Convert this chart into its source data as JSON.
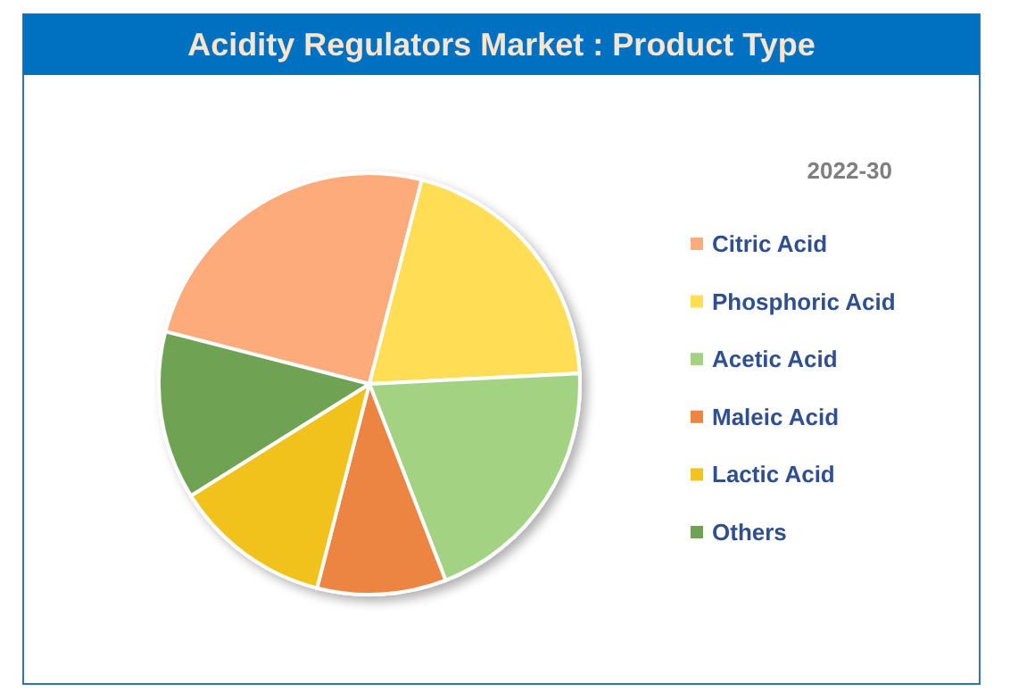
{
  "chart_data": {
    "type": "pie",
    "title": "Acidity Regulators Market : Product Type",
    "subtitle": "2022-30",
    "categories": [
      "Citric Acid",
      "Phosphoric Acid",
      "Acetic Acid",
      "Maleic Acid",
      "Lactic Acid",
      "Others"
    ],
    "values": [
      25.0,
      20.2,
      19.9,
      9.9,
      12.1,
      12.9
    ],
    "colors": [
      "#fdab7a",
      "#ffdd55",
      "#a3d282",
      "#ec8442",
      "#f2c21e",
      "#6fa253"
    ],
    "legend": "right"
  }
}
